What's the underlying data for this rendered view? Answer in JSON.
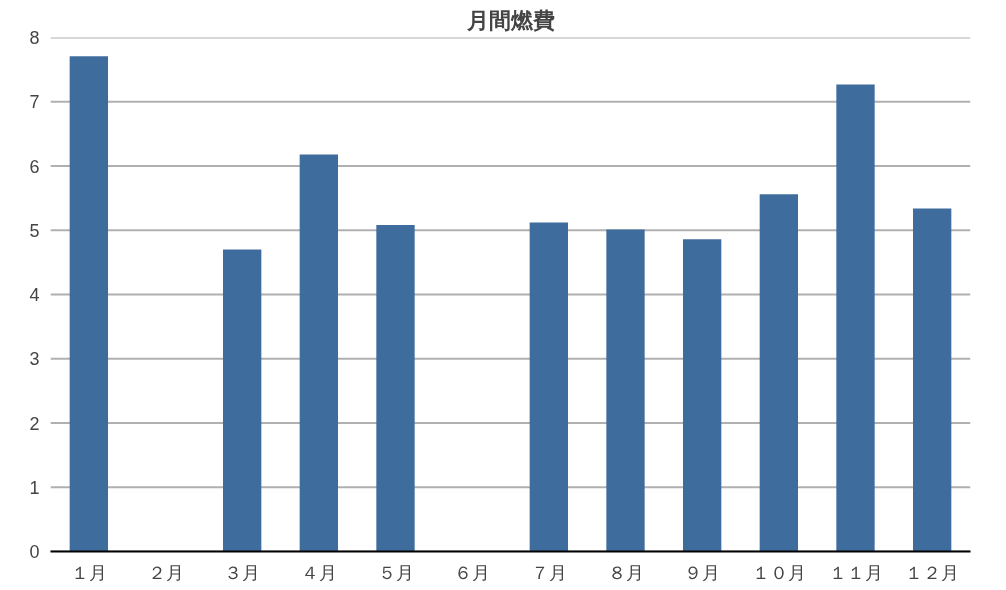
{
  "chart_data": {
    "type": "bar",
    "title": "月間燃費",
    "categories": [
      "１月",
      "２月",
      "３月",
      "４月",
      "５月",
      "６月",
      "７月",
      "８月",
      "９月",
      "１０月",
      "１１月",
      "１２月"
    ],
    "values": [
      7.71,
      null,
      4.7,
      6.18,
      5.08,
      null,
      5.12,
      5.01,
      4.86,
      5.56,
      7.27,
      5.34
    ],
    "color": "#3e6c9c",
    "ylim": [
      0,
      8
    ],
    "yticks": [
      0,
      1,
      2,
      3,
      4,
      5,
      6,
      7,
      8
    ],
    "grid": "y"
  }
}
